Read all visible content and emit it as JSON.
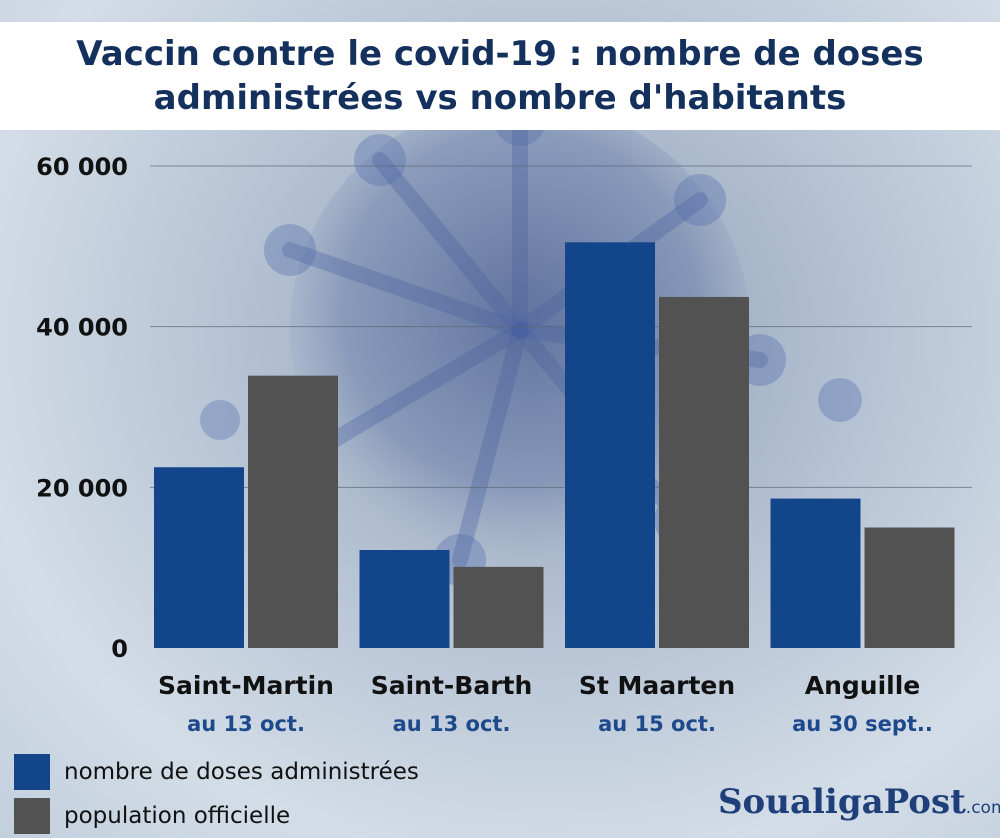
{
  "header": {
    "title_line1": "Vaccin contre le covid-19 : nombre de doses",
    "title_line2": "administrées vs nombre d'habitants"
  },
  "chart_data": {
    "type": "bar",
    "title": "Vaccin contre le covid-19 : nombre de doses administrées vs nombre d'habitants",
    "xlabel": "",
    "ylabel": "",
    "ylim": [
      0,
      60000
    ],
    "yticks": [
      0,
      20000,
      40000,
      60000
    ],
    "ytick_labels": [
      "0",
      "20 000",
      "40 000",
      "60 000"
    ],
    "grid": true,
    "legend_position": "bottom-left",
    "categories": [
      "Saint-Martin",
      "Saint-Barth",
      "St Maarten",
      "Anguille"
    ],
    "category_dates": [
      "au 13 oct.",
      "au 13 oct.",
      "au 15 oct.",
      "au 30 sept.."
    ],
    "series": [
      {
        "name": "nombre de doses administrées",
        "color": "#13458a",
        "values": [
          22500,
          12200,
          50500,
          18600
        ]
      },
      {
        "name": "population officielle",
        "color": "#525252",
        "values": [
          33900,
          10100,
          43700,
          15000
        ]
      }
    ]
  },
  "legend": {
    "items": [
      {
        "label": "nombre de doses administrées",
        "color": "#13458a"
      },
      {
        "label": "population officielle",
        "color": "#525252"
      }
    ]
  },
  "branding": {
    "name": "SoualigaPost",
    "suffix": ".com",
    "color": "#1f3f7a"
  },
  "colors": {
    "title": "#14305c",
    "date_labels": "#1e4a8c",
    "grid": "#5b6675"
  }
}
